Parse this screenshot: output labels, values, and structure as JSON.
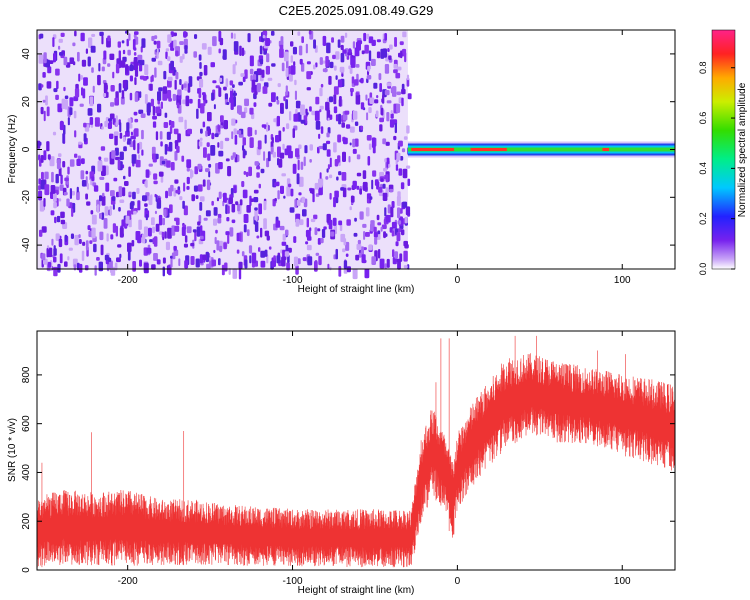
{
  "title": "C2E5.2025.091.08.49.G29",
  "colors": {
    "snr_trace": "#ee3333",
    "spectrogram_low": "#7722ee",
    "background": "#ffffff"
  },
  "chart_data": [
    {
      "type": "heatmap",
      "name": "spectrogram",
      "xlabel": "Height of straight line (km)",
      "ylabel": "Frequency (Hz)",
      "xlim": [
        -255,
        132
      ],
      "ylim": [
        -50,
        50
      ],
      "x_ticks": [
        -200,
        -100,
        0,
        100
      ],
      "y_ticks": [
        -40,
        -20,
        0,
        20,
        40
      ],
      "noise_region_x": [
        -255,
        -30
      ],
      "signal_region_x": [
        -30,
        132
      ],
      "signal_frequency": 0,
      "grid": false,
      "colorbar": {
        "label": "Normalized spectral amplitude",
        "range": [
          0.0,
          0.95
        ],
        "ticks": [
          "0.0",
          "0.2",
          "0.4",
          "0.6",
          "0.8"
        ],
        "colormap": "rainbow (purple-blue-cyan-green-yellow-orange-red-pink)"
      }
    },
    {
      "type": "line",
      "name": "snr",
      "xlabel": "Height of straight line (km)",
      "ylabel": "SNR (10 * v/v)",
      "xlim": [
        -255,
        132
      ],
      "ylim": [
        0,
        980
      ],
      "x_ticks": [
        -200,
        -100,
        0,
        100
      ],
      "y_ticks": [
        0,
        200,
        400,
        600,
        800
      ],
      "grid": false,
      "envelope_points": [
        [
          -255,
          10,
          300
        ],
        [
          -240,
          20,
          330
        ],
        [
          -220,
          20,
          320
        ],
        [
          -200,
          15,
          330
        ],
        [
          -180,
          20,
          290
        ],
        [
          -160,
          20,
          290
        ],
        [
          -140,
          20,
          270
        ],
        [
          -120,
          15,
          260
        ],
        [
          -100,
          15,
          250
        ],
        [
          -80,
          15,
          250
        ],
        [
          -60,
          10,
          250
        ],
        [
          -40,
          10,
          250
        ],
        [
          -28,
          10,
          250
        ],
        [
          -22,
          200,
          550
        ],
        [
          -15,
          300,
          680
        ],
        [
          -8,
          250,
          560
        ],
        [
          -3,
          100,
          460
        ],
        [
          0,
          250,
          560
        ],
        [
          10,
          350,
          700
        ],
        [
          20,
          430,
          780
        ],
        [
          30,
          500,
          880
        ],
        [
          45,
          560,
          890
        ],
        [
          60,
          520,
          860
        ],
        [
          80,
          520,
          830
        ],
        [
          100,
          470,
          810
        ],
        [
          120,
          430,
          780
        ],
        [
          132,
          400,
          760
        ]
      ],
      "spikes": [
        [
          -252,
          440
        ],
        [
          -222,
          565
        ],
        [
          -166,
          570
        ],
        [
          -13,
          770
        ],
        [
          -10,
          950
        ],
        [
          -5,
          950
        ],
        [
          35,
          960
        ],
        [
          48,
          960
        ],
        [
          85,
          900
        ],
        [
          102,
          885
        ]
      ]
    }
  ]
}
